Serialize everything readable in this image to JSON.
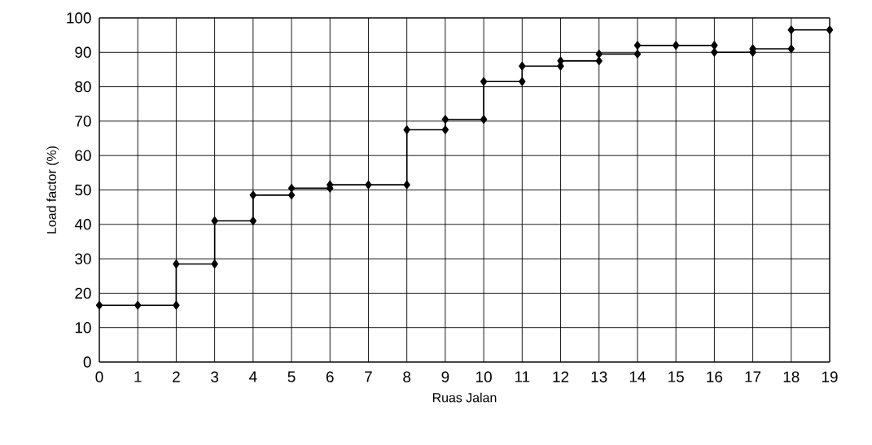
{
  "chart_data": {
    "type": "line",
    "xlabel": "Ruas Jalan",
    "ylabel": "Load factor (%)",
    "x": [
      0,
      1,
      2,
      2,
      3,
      3,
      4,
      4,
      5,
      5,
      6,
      6,
      7,
      8,
      8,
      9,
      9,
      10,
      10,
      11,
      11,
      12,
      12,
      13,
      13,
      14,
      14,
      15,
      16,
      16,
      17,
      17,
      18,
      18,
      19
    ],
    "series": [
      {
        "color": "#000000",
        "values": [
          16.5,
          16.5,
          16.5,
          28.5,
          28.5,
          41,
          41,
          48.5,
          48.5,
          50.5,
          50.5,
          51.5,
          51.5,
          51.5,
          67.5,
          67.5,
          70.5,
          70.5,
          81.5,
          81.5,
          86,
          86,
          87.5,
          87.5,
          89.5,
          89.5,
          92,
          92,
          92,
          90,
          90,
          91,
          91,
          96.5,
          96.5
        ]
      }
    ],
    "xlim": [
      0,
      19
    ],
    "ylim": [
      0,
      100
    ],
    "xticks": [
      0,
      1,
      2,
      3,
      4,
      5,
      6,
      7,
      8,
      9,
      10,
      11,
      12,
      13,
      14,
      15,
      16,
      17,
      18,
      19
    ],
    "yticks": [
      0,
      10,
      20,
      30,
      40,
      50,
      60,
      70,
      80,
      90,
      100
    ],
    "grid": true,
    "marker": "diamond",
    "line_style": "solid"
  }
}
